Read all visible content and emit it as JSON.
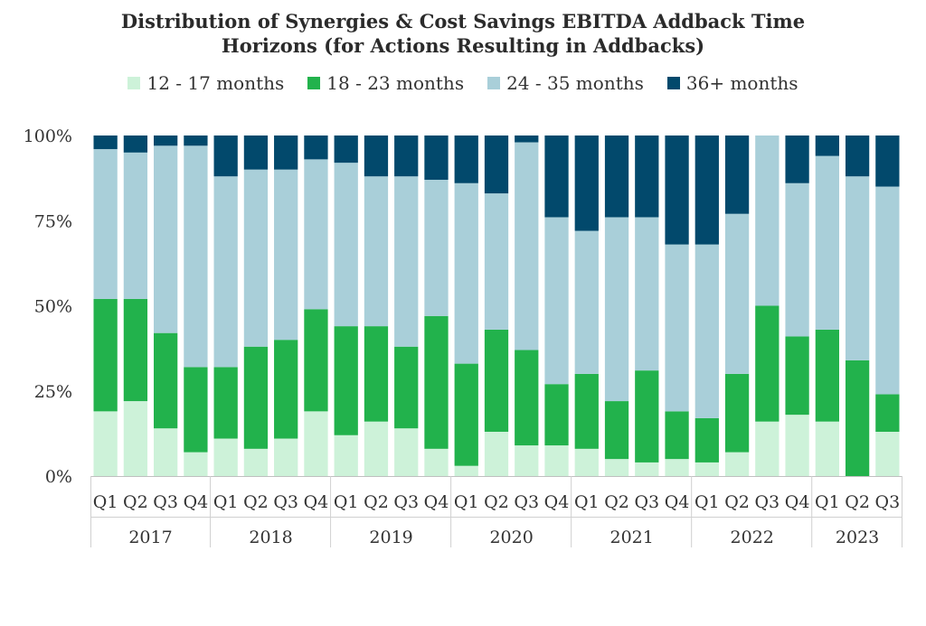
{
  "chart_data": {
    "type": "bar",
    "stacked": true,
    "title_line1": "Distribution of Synergies & Cost Savings EBITDA Addback Time",
    "title_line2": "Horizons (for Actions Resulting in Addbacks)",
    "ylim": [
      0,
      100
    ],
    "y_ticks": [
      "0%",
      "25%",
      "50%",
      "75%",
      "100%"
    ],
    "legend_position": "top",
    "quarters": [
      "Q1",
      "Q2",
      "Q3",
      "Q4",
      "Q1",
      "Q2",
      "Q3",
      "Q4",
      "Q1",
      "Q2",
      "Q3",
      "Q4",
      "Q1",
      "Q2",
      "Q3",
      "Q4",
      "Q1",
      "Q2",
      "Q3",
      "Q4",
      "Q1",
      "Q2",
      "Q3",
      "Q4",
      "Q1",
      "Q2",
      "Q3"
    ],
    "years": [
      {
        "label": "2017",
        "count": 4
      },
      {
        "label": "2018",
        "count": 4
      },
      {
        "label": "2019",
        "count": 4
      },
      {
        "label": "2020",
        "count": 4
      },
      {
        "label": "2021",
        "count": 4
      },
      {
        "label": "2022",
        "count": 4
      },
      {
        "label": "2023",
        "count": 3
      }
    ],
    "series": [
      {
        "name": "12 - 17 months",
        "color": "#cdf2d9",
        "values": [
          19,
          22,
          14,
          7,
          11,
          8,
          11,
          19,
          12,
          16,
          14,
          8,
          3,
          13,
          9,
          9,
          8,
          5,
          4,
          5,
          4,
          7,
          16,
          18,
          16,
          0,
          13
        ]
      },
      {
        "name": "18 - 23 months",
        "color": "#22b24c",
        "values": [
          33,
          30,
          28,
          25,
          21,
          30,
          29,
          30,
          32,
          28,
          24,
          39,
          30,
          30,
          28,
          18,
          22,
          17,
          27,
          14,
          13,
          23,
          34,
          23,
          27,
          34,
          11
        ]
      },
      {
        "name": "24 - 35 months",
        "color": "#a9cfd9",
        "values": [
          44,
          43,
          55,
          65,
          56,
          52,
          50,
          44,
          48,
          44,
          50,
          40,
          53,
          40,
          61,
          49,
          42,
          54,
          45,
          49,
          51,
          47,
          50,
          45,
          51,
          54,
          61
        ]
      },
      {
        "name": "36+ months",
        "color": "#02496c",
        "values": [
          4,
          5,
          3,
          3,
          12,
          10,
          10,
          7,
          8,
          12,
          12,
          13,
          14,
          17,
          2,
          24,
          28,
          24,
          24,
          32,
          32,
          23,
          0,
          14,
          6,
          12,
          15
        ]
      }
    ]
  }
}
